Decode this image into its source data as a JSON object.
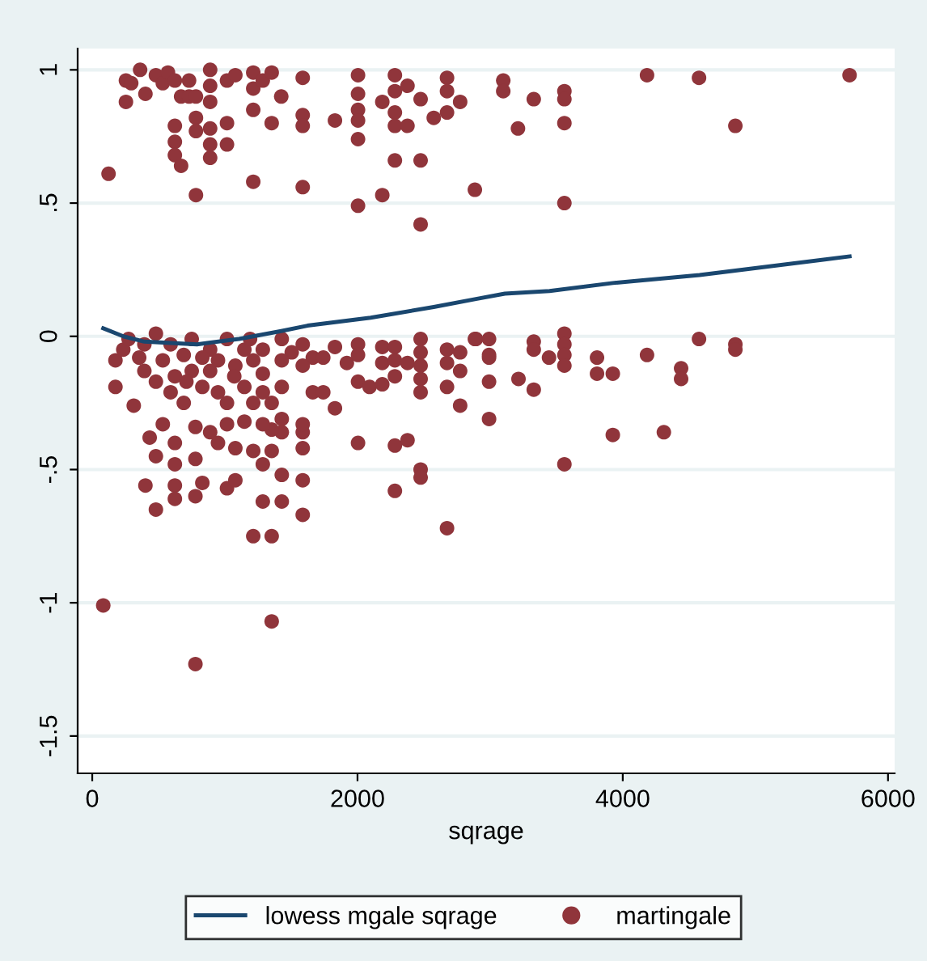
{
  "chart_data": {
    "type": "scatter",
    "xlabel": "sqrage",
    "xlim": [
      -110,
      6050
    ],
    "ylim": [
      -1.64,
      1.08
    ],
    "xticks": [
      0,
      2000,
      4000,
      6000
    ],
    "yticks": [
      {
        "value": -1.5,
        "label": "-1.5"
      },
      {
        "value": -1,
        "label": "-1"
      },
      {
        "value": -0.5,
        "label": "-.5"
      },
      {
        "value": 0,
        "label": "0"
      },
      {
        "value": 0.5,
        "label": ".5"
      },
      {
        "value": 1,
        "label": "1"
      }
    ],
    "grid": "y",
    "legend": "bottom",
    "series": [
      {
        "name": "lowess mgale sqrage",
        "type": "line",
        "color": "#1a476f",
        "line_style": "solid",
        "x": [
          83,
          234,
          393,
          790,
          1107,
          1425,
          1623,
          2099,
          2575,
          2893,
          3111,
          3448,
          3925,
          4579,
          5710
        ],
        "values": [
          0.03,
          0.0,
          -0.02,
          -0.03,
          -0.01,
          0.02,
          0.04,
          0.07,
          0.11,
          0.14,
          0.16,
          0.17,
          0.2,
          0.23,
          0.3
        ]
      },
      {
        "name": "martingale",
        "marker": "circle",
        "color": "#90353b",
        "x": [
          123,
          254,
          254,
          294,
          361,
          401,
          480,
          532,
          571,
          623,
          623,
          623,
          623,
          670,
          670,
          730,
          730,
          782,
          782,
          782,
          782,
          889,
          889,
          889,
          889,
          889,
          889,
          1016,
          1016,
          1016,
          1079,
          1214,
          1214,
          1214,
          1214,
          1286,
          1353,
          1353,
          1425,
          1587,
          1587,
          1587,
          1587,
          1830,
          2004,
          2004,
          2004,
          2004,
          2004,
          2004,
          2187,
          2187,
          2282,
          2282,
          2282,
          2282,
          2282,
          2377,
          2377,
          2476,
          2476,
          2476,
          2575,
          2675,
          2675,
          2675,
          2774,
          2885,
          3099,
          3099,
          3210,
          3329,
          3560,
          3560,
          3560,
          3560,
          4183,
          4575,
          4849,
          5710,
          2893,
          2992,
          2992,
          2992,
          2992,
          3214,
          3329,
          3329,
          3329,
          3444,
          3560,
          3560,
          3560,
          3560,
          3560,
          3806,
          3806,
          3925,
          3925,
          4183,
          4310,
          4440,
          4440,
          4575,
          4849,
          4849,
          83,
          778,
          1353,
          401,
          480,
          623,
          623,
          778,
          830,
          1016,
          1079,
          1214,
          1353,
          1286,
          1429,
          1429,
          1587,
          1587,
          1286,
          1214,
          1353,
          1587,
          1587,
          2004,
          2282,
          2377,
          2282,
          2476,
          2476,
          2675,
          2774,
          1830,
          1830,
          1920,
          2004,
          2004,
          2004,
          2091,
          2187,
          2187,
          2187,
          2282,
          2282,
          2282,
          2377,
          2476,
          2476,
          2476,
          2476,
          2476,
          2675,
          2675,
          2675,
          2774,
          2774,
          2885,
          2992,
          1663,
          1663,
          1742,
          1742,
          1504,
          1587,
          1587,
          1587,
          1429,
          1429,
          1429,
          1429,
          1429,
          1353,
          1353,
          175,
          175,
          234,
          313,
          393,
          393,
          433,
          480,
          480,
          480,
          532,
          532,
          591,
          623,
          623,
          623,
          690,
          690,
          750,
          750,
          778,
          778,
          830,
          889,
          889,
          889,
          948,
          948,
          1016,
          1016,
          1016,
          1079,
          1079,
          1147,
          1147,
          1147,
          1214,
          1214,
          1286,
          1286,
          1286,
          1286,
          274,
          354,
          591,
          710,
          830,
          948,
          1071,
          1190
        ],
        "values": [
          0.61,
          0.96,
          0.88,
          0.95,
          1.0,
          0.91,
          0.98,
          0.95,
          0.99,
          0.96,
          0.79,
          0.73,
          0.68,
          0.64,
          0.9,
          0.96,
          0.9,
          0.9,
          0.82,
          0.77,
          0.53,
          1.0,
          0.94,
          0.88,
          0.78,
          0.72,
          0.67,
          0.96,
          0.8,
          0.72,
          0.98,
          0.99,
          0.93,
          0.85,
          0.58,
          0.96,
          0.99,
          0.8,
          0.9,
          0.97,
          0.83,
          0.79,
          0.56,
          0.81,
          0.98,
          0.91,
          0.85,
          0.81,
          0.74,
          0.49,
          0.88,
          0.53,
          0.98,
          0.92,
          0.84,
          0.79,
          0.66,
          0.94,
          0.79,
          0.89,
          0.66,
          0.42,
          0.82,
          0.97,
          0.92,
          0.84,
          0.88,
          0.55,
          0.96,
          0.92,
          0.78,
          0.89,
          0.92,
          0.89,
          0.8,
          0.5,
          0.98,
          0.97,
          0.79,
          0.98,
          -0.01,
          -0.01,
          -0.08,
          -0.17,
          -0.31,
          -0.16,
          -0.02,
          -0.05,
          -0.2,
          -0.08,
          0.01,
          -0.03,
          -0.07,
          -0.11,
          -0.48,
          -0.08,
          -0.14,
          -0.14,
          -0.37,
          -0.07,
          -0.36,
          -0.12,
          -0.16,
          -0.01,
          -0.03,
          -0.05,
          -1.01,
          -1.23,
          -1.07,
          -0.56,
          -0.65,
          -0.56,
          -0.61,
          -0.6,
          -0.55,
          -0.57,
          -0.54,
          -0.75,
          -0.75,
          -0.62,
          -0.62,
          -0.52,
          -0.54,
          -0.67,
          -0.48,
          -0.43,
          -0.43,
          -0.42,
          -0.36,
          -0.4,
          -0.41,
          -0.39,
          -0.58,
          -0.5,
          -0.53,
          -0.72,
          -0.26,
          -0.04,
          -0.27,
          -0.1,
          -0.03,
          -0.07,
          -0.17,
          -0.19,
          -0.04,
          -0.1,
          -0.18,
          -0.04,
          -0.09,
          -0.15,
          -0.1,
          -0.01,
          -0.06,
          -0.11,
          -0.16,
          -0.21,
          -0.05,
          -0.1,
          -0.19,
          -0.06,
          -0.13,
          -0.01,
          -0.07,
          -0.08,
          -0.21,
          -0.08,
          -0.21,
          -0.06,
          -0.03,
          -0.11,
          -0.33,
          -0.01,
          -0.09,
          -0.19,
          -0.31,
          -0.36,
          -0.25,
          -0.35,
          -0.09,
          -0.19,
          -0.05,
          -0.26,
          -0.03,
          -0.13,
          -0.38,
          0.01,
          -0.17,
          -0.45,
          -0.33,
          -0.09,
          -0.03,
          -0.15,
          -0.4,
          -0.48,
          -0.25,
          -0.07,
          -0.01,
          -0.13,
          -0.34,
          -0.46,
          -0.19,
          -0.05,
          -0.36,
          -0.13,
          -0.4,
          -0.09,
          -0.01,
          -0.25,
          -0.33,
          -0.11,
          -0.42,
          -0.05,
          -0.19,
          -0.32,
          -0.09,
          -0.25,
          -0.05,
          -0.14,
          -0.21,
          -0.33,
          -0.01,
          -0.08,
          -0.21,
          -0.17,
          -0.08,
          -0.21,
          -0.15,
          -0.01
        ]
      }
    ]
  }
}
